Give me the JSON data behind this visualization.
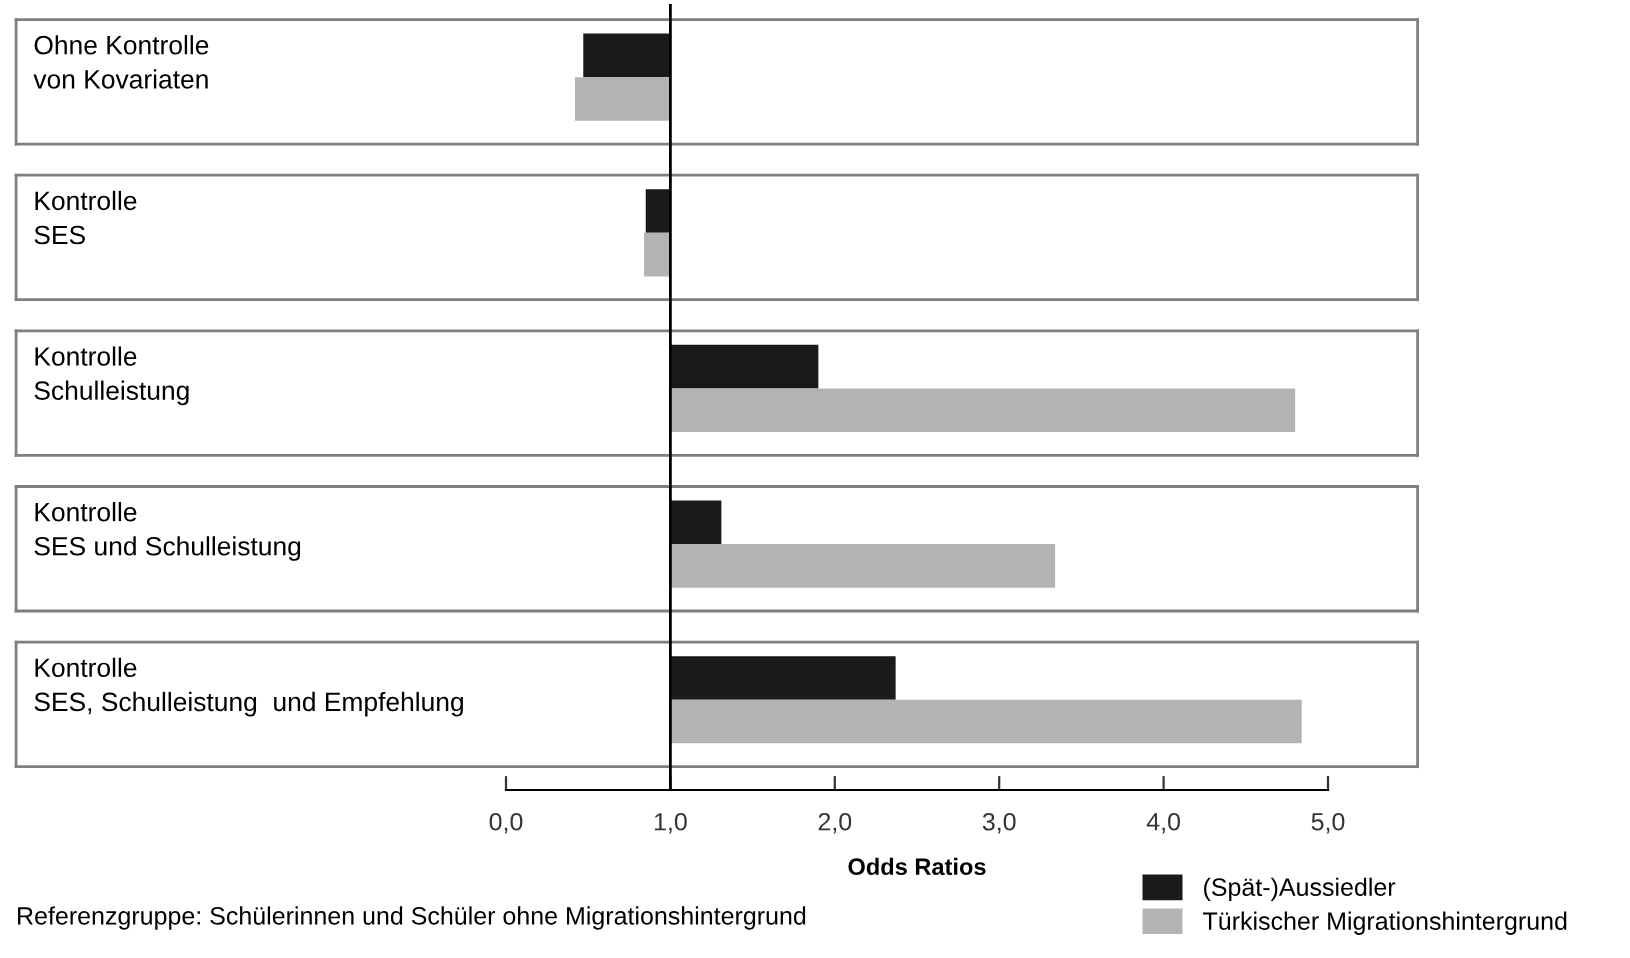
{
  "chart_data": {
    "type": "bar",
    "orientation": "horizontal",
    "categories": [
      "Ohne Kontrolle\nvon Kovariaten",
      "Kontrolle\nSES",
      "Kontrolle\nSchulleistung",
      "Kontrolle\nSES und Schulleistung",
      "Kontrolle\nSES, Schulleistung  und Empfehlung"
    ],
    "series": [
      {
        "name": "(Spät-)Aussiedler",
        "color": "#1a1a1a",
        "base": [
          1,
          1,
          1,
          1,
          1
        ],
        "values": [
          -0.53,
          -0.15,
          0.9,
          0.31,
          1.37
        ]
      },
      {
        "name": "Türkischer Migrationshintergrund",
        "color": "#b3b3b3",
        "base": [
          1,
          1,
          1,
          1,
          1
        ],
        "values": [
          -0.58,
          -0.16,
          3.8,
          2.34,
          3.84
        ]
      }
    ],
    "xlabel": "Odds Ratios",
    "xlim": [
      0,
      5
    ],
    "xticks": [
      {
        "value": 0,
        "label": "0,0"
      },
      {
        "value": 1,
        "label": "1,0"
      },
      {
        "value": 2,
        "label": "2,0"
      },
      {
        "value": 3,
        "label": "3,0"
      },
      {
        "value": 4,
        "label": "4,0"
      },
      {
        "value": 5,
        "label": "5,0"
      }
    ],
    "ref_lines": [
      {
        "axis": "x",
        "value": 1,
        "color": "#000000"
      }
    ],
    "annotations": [
      "Referenzgruppe: Schülerinnen und Schüler ohne Migrationshintergrund"
    ],
    "legend": "bottom right",
    "grid": false
  }
}
